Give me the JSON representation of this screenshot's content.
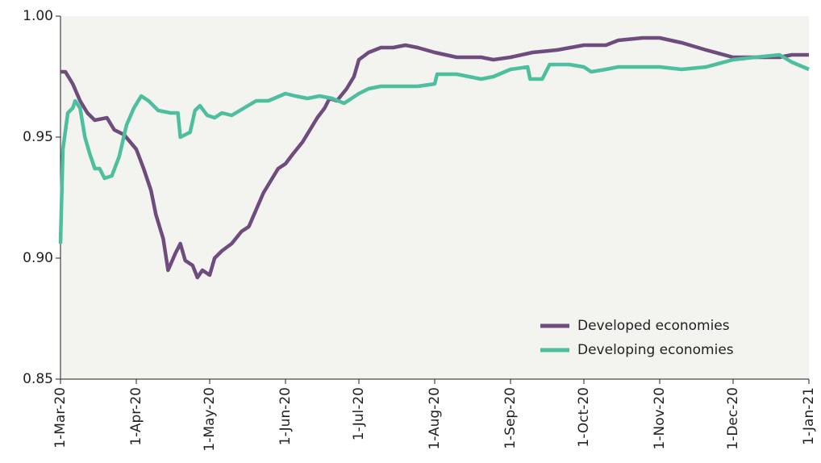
{
  "chart_data": {
    "type": "line",
    "xlim": [
      "2020-03-01",
      "2021-01-01"
    ],
    "xticks": [
      {
        "value": "2020-03-01",
        "label": "1-Mar-20"
      },
      {
        "value": "2020-04-01",
        "label": "1-Apr-20"
      },
      {
        "value": "2020-05-01",
        "label": "1-May-20"
      },
      {
        "value": "2020-06-01",
        "label": "1-Jun-20"
      },
      {
        "value": "2020-07-01",
        "label": "1-Jul-20"
      },
      {
        "value": "2020-08-01",
        "label": "1-Aug-20"
      },
      {
        "value": "2020-09-01",
        "label": "1-Sep-20"
      },
      {
        "value": "2020-10-01",
        "label": "1-Oct-20"
      },
      {
        "value": "2020-11-01",
        "label": "1-Nov-20"
      },
      {
        "value": "2020-12-01",
        "label": "1-Dec-20"
      },
      {
        "value": "2021-01-01",
        "label": "1-Jan-21"
      }
    ],
    "ylim": [
      0.85,
      1.0
    ],
    "yticks": [
      {
        "value": 0.85,
        "label": "0.85"
      },
      {
        "value": 0.9,
        "label": "0.90"
      },
      {
        "value": 0.95,
        "label": "0.95"
      },
      {
        "value": 1.0,
        "label": "1.00"
      }
    ],
    "legend": "lower right",
    "series": [
      {
        "name": "Developed economies",
        "color": "#6e4c7e",
        "x": [
          "2020-03-01",
          "2020-03-03",
          "2020-03-06",
          "2020-03-09",
          "2020-03-12",
          "2020-03-15",
          "2020-03-20",
          "2020-03-23",
          "2020-03-27",
          "2020-04-01",
          "2020-04-04",
          "2020-04-07",
          "2020-04-09",
          "2020-04-12",
          "2020-04-14",
          "2020-04-17",
          "2020-04-19",
          "2020-04-21",
          "2020-04-24",
          "2020-04-26",
          "2020-04-28",
          "2020-05-01",
          "2020-05-03",
          "2020-05-06",
          "2020-05-10",
          "2020-05-14",
          "2020-05-17",
          "2020-05-20",
          "2020-05-23",
          "2020-05-26",
          "2020-05-29",
          "2020-06-01",
          "2020-06-04",
          "2020-06-08",
          "2020-06-11",
          "2020-06-14",
          "2020-06-17",
          "2020-06-19",
          "2020-06-22",
          "2020-06-26",
          "2020-06-29",
          "2020-07-01",
          "2020-07-05",
          "2020-07-10",
          "2020-07-15",
          "2020-07-20",
          "2020-07-25",
          "2020-08-01",
          "2020-08-10",
          "2020-08-20",
          "2020-08-25",
          "2020-09-01",
          "2020-09-10",
          "2020-09-20",
          "2020-10-01",
          "2020-10-10",
          "2020-10-15",
          "2020-10-25",
          "2020-11-01",
          "2020-11-10",
          "2020-11-20",
          "2020-12-01",
          "2020-12-10",
          "2020-12-20",
          "2020-12-25",
          "2021-01-01"
        ],
        "values": [
          0.977,
          0.977,
          0.972,
          0.965,
          0.96,
          0.957,
          0.958,
          0.953,
          0.951,
          0.945,
          0.937,
          0.928,
          0.918,
          0.908,
          0.895,
          0.902,
          0.906,
          0.899,
          0.897,
          0.892,
          0.895,
          0.893,
          0.9,
          0.903,
          0.906,
          0.911,
          0.913,
          0.92,
          0.927,
          0.932,
          0.937,
          0.939,
          0.943,
          0.948,
          0.953,
          0.958,
          0.962,
          0.966,
          0.965,
          0.97,
          0.975,
          0.982,
          0.985,
          0.987,
          0.987,
          0.988,
          0.987,
          0.985,
          0.983,
          0.983,
          0.982,
          0.983,
          0.985,
          0.986,
          0.988,
          0.988,
          0.99,
          0.991,
          0.991,
          0.989,
          0.986,
          0.983,
          0.983,
          0.983,
          0.984,
          0.984
        ]
      },
      {
        "name": "Developing economies",
        "color": "#4dbf9f",
        "x": [
          "2020-03-01",
          "2020-03-02",
          "2020-03-04",
          "2020-03-06",
          "2020-03-07",
          "2020-03-09",
          "2020-03-11",
          "2020-03-13",
          "2020-03-15",
          "2020-03-17",
          "2020-03-19",
          "2020-03-22",
          "2020-03-25",
          "2020-03-28",
          "2020-03-31",
          "2020-04-03",
          "2020-04-06",
          "2020-04-10",
          "2020-04-15",
          "2020-04-18",
          "2020-04-19",
          "2020-04-23",
          "2020-04-25",
          "2020-04-27",
          "2020-04-30",
          "2020-05-03",
          "2020-05-06",
          "2020-05-10",
          "2020-05-15",
          "2020-05-20",
          "2020-05-25",
          "2020-06-01",
          "2020-06-05",
          "2020-06-10",
          "2020-06-15",
          "2020-06-20",
          "2020-06-25",
          "2020-07-01",
          "2020-07-05",
          "2020-07-10",
          "2020-07-20",
          "2020-07-25",
          "2020-08-01",
          "2020-08-02",
          "2020-08-10",
          "2020-08-15",
          "2020-08-20",
          "2020-08-25",
          "2020-09-01",
          "2020-09-08",
          "2020-09-09",
          "2020-09-14",
          "2020-09-17",
          "2020-09-25",
          "2020-10-01",
          "2020-10-04",
          "2020-10-10",
          "2020-10-15",
          "2020-11-01",
          "2020-11-10",
          "2020-11-20",
          "2020-12-01",
          "2020-12-10",
          "2020-12-20",
          "2020-12-25",
          "2021-01-01"
        ],
        "values": [
          0.906,
          0.945,
          0.96,
          0.962,
          0.965,
          0.962,
          0.95,
          0.943,
          0.937,
          0.937,
          0.933,
          0.934,
          0.942,
          0.955,
          0.962,
          0.967,
          0.965,
          0.961,
          0.96,
          0.96,
          0.95,
          0.952,
          0.961,
          0.963,
          0.959,
          0.958,
          0.96,
          0.959,
          0.962,
          0.965,
          0.965,
          0.968,
          0.967,
          0.966,
          0.967,
          0.966,
          0.964,
          0.968,
          0.97,
          0.971,
          0.971,
          0.971,
          0.972,
          0.976,
          0.976,
          0.975,
          0.974,
          0.975,
          0.978,
          0.979,
          0.974,
          0.974,
          0.98,
          0.98,
          0.979,
          0.977,
          0.978,
          0.979,
          0.979,
          0.978,
          0.979,
          0.982,
          0.983,
          0.984,
          0.981,
          0.978
        ]
      }
    ]
  }
}
